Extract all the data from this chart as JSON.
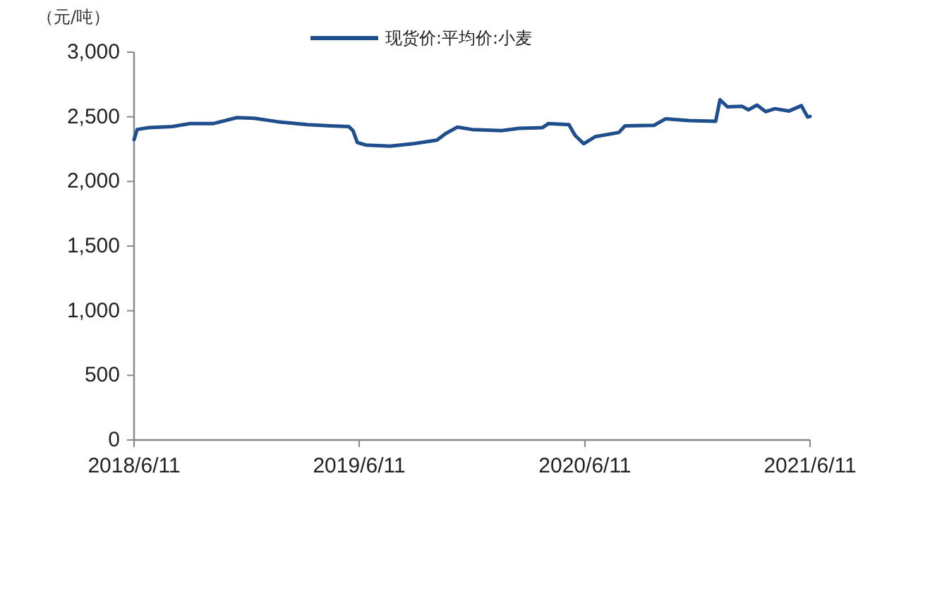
{
  "chart_data": {
    "type": "line",
    "ylabel": "（元/吨）",
    "legend": "top",
    "grid": false,
    "xlim": [
      "2018-06-11",
      "2021-06-11"
    ],
    "ylim": [
      0,
      3000
    ],
    "xticks": [
      {
        "value": "2018-06-11",
        "label": "2018/6/11"
      },
      {
        "value": "2019-06-11",
        "label": "2019/6/11"
      },
      {
        "value": "2020-06-11",
        "label": "2020/6/11"
      },
      {
        "value": "2021-06-11",
        "label": "2021/6/11"
      }
    ],
    "yticks": [
      {
        "value": 0,
        "label": "0"
      },
      {
        "value": 500,
        "label": "500"
      },
      {
        "value": 1000,
        "label": "1,000"
      },
      {
        "value": 1500,
        "label": "1,500"
      },
      {
        "value": 2000,
        "label": "2,000"
      },
      {
        "value": 2500,
        "label": "2,500"
      },
      {
        "value": 3000,
        "label": "3,000"
      }
    ],
    "x": [
      "2018-06-11",
      "2018-06-16",
      "2018-07-05",
      "2018-08-12",
      "2018-09-10",
      "2018-10-18",
      "2018-11-25",
      "2018-12-23",
      "2019-01-30",
      "2019-03-19",
      "2019-04-26",
      "2019-05-25",
      "2019-06-01",
      "2019-06-08",
      "2019-06-22",
      "2019-07-31",
      "2019-09-07",
      "2019-10-15",
      "2019-10-29",
      "2019-11-17",
      "2019-12-11",
      "2020-01-28",
      "2020-02-25",
      "2020-04-03",
      "2020-04-13",
      "2020-05-16",
      "2020-05-26",
      "2020-06-09",
      "2020-06-28",
      "2020-08-05",
      "2020-08-15",
      "2020-10-01",
      "2020-10-20",
      "2020-11-27",
      "2021-01-09",
      "2021-01-16",
      "2021-01-28",
      "2021-02-21",
      "2021-03-03",
      "2021-03-17",
      "2021-03-31",
      "2021-04-15",
      "2021-05-08",
      "2021-05-28",
      "2021-06-07",
      "2021-06-11"
    ],
    "series": [
      {
        "name": "现货价:平均价:小麦",
        "color": "#1f4e8c",
        "values": [
          2324,
          2402,
          2416,
          2425,
          2448,
          2448,
          2494,
          2489,
          2462,
          2439,
          2430,
          2425,
          2393,
          2301,
          2282,
          2273,
          2292,
          2319,
          2370,
          2420,
          2402,
          2393,
          2411,
          2416,
          2448,
          2439,
          2356,
          2292,
          2347,
          2379,
          2430,
          2434,
          2485,
          2471,
          2466,
          2632,
          2577,
          2581,
          2554,
          2591,
          2540,
          2563,
          2545,
          2586,
          2499,
          2503
        ]
      }
    ]
  }
}
